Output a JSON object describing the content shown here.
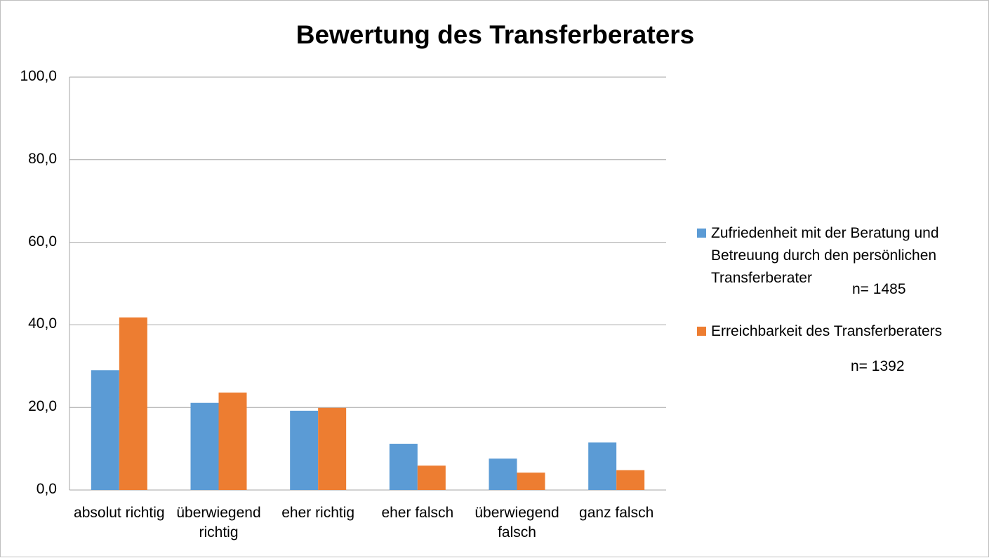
{
  "chart_data": {
    "type": "bar",
    "title": "Bewertung des Transferberaters",
    "categories": [
      "absolut richtig",
      "überwiegend richtig",
      "eher richtig",
      "eher falsch",
      "überwiegend falsch",
      "ganz falsch"
    ],
    "series": [
      {
        "name": "Zufriedenheit mit der Beratung und Betreuung durch den persönlichen Transferberater",
        "color": "#5b9bd5",
        "values": [
          29.0,
          21.1,
          19.2,
          11.2,
          7.6,
          11.5
        ]
      },
      {
        "name": "Erreichbarkeit des Transferberaters",
        "color": "#ed7d31",
        "values": [
          41.8,
          23.6,
          19.9,
          5.9,
          4.2,
          4.8
        ]
      }
    ],
    "annotations": [
      "n= 1485",
      "n= 1392"
    ],
    "ylim": [
      0,
      100
    ],
    "yticks": [
      {
        "value": 0,
        "label": "0,0"
      },
      {
        "value": 20,
        "label": "20,0"
      },
      {
        "value": 40,
        "label": "40,0"
      },
      {
        "value": 60,
        "label": "60,0"
      },
      {
        "value": 80,
        "label": "80,0"
      },
      {
        "value": 100,
        "label": "100,0"
      }
    ],
    "grid": true,
    "legend": "right"
  }
}
